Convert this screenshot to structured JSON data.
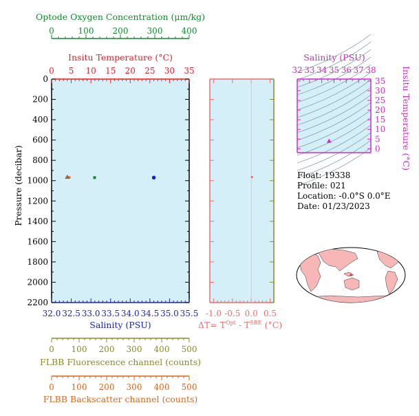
{
  "colors": {
    "plot_bg": "#d4eff8",
    "oxygen": "#118a2e",
    "temperature": "#ee1c24",
    "salinity": "#1a22c8",
    "pressure": "#000000",
    "delta_t": "#f56c6c",
    "ts_diagram": "#d62ac4",
    "fluorescence": "#8a8a2a",
    "backscatter": "#e0641a",
    "land": "#f7b7b7"
  },
  "info": {
    "float": "Float:  19338",
    "profile": "Profile:  021",
    "location": "Location:  -0.0°S   0.0°E",
    "date": "Date:  01/23/2023"
  },
  "chart_data": [
    {
      "type": "scatter",
      "name": "profile",
      "y_axis": {
        "label": "Pressure (decibar)",
        "ticks": [
          "0",
          "200",
          "400",
          "600",
          "800",
          "1000",
          "1200",
          "1400",
          "1600",
          "1800",
          "2000",
          "2200"
        ],
        "range": [
          0,
          2200
        ],
        "inverted": true
      },
      "x_axes": [
        {
          "key": "oxygen",
          "label": "Optode Oxygen Concentration (μm/kg)",
          "ticks": [
            "0",
            "100",
            "200",
            "300",
            "400"
          ],
          "range": [
            0,
            400
          ]
        },
        {
          "key": "temperature",
          "label": "Insitu Temperature (°C)",
          "ticks": [
            "0",
            "5",
            "10",
            "15",
            "20",
            "25",
            "30",
            "35"
          ],
          "range": [
            0,
            35
          ]
        },
        {
          "key": "salinity",
          "label": "Salinity (PSU)",
          "ticks": [
            "32.0",
            "32.5",
            "33.0",
            "33.5",
            "34.0",
            "34.5",
            "35.0",
            "35.5"
          ],
          "range": [
            32.0,
            35.5
          ]
        },
        {
          "key": "fluorescence",
          "label": "FLBB Fluorescence channel (counts)",
          "ticks": [
            "0",
            "100",
            "200",
            "300",
            "400",
            "500"
          ],
          "range": [
            0,
            500
          ]
        },
        {
          "key": "backscatter",
          "label": "FLBB Backscatter channel (counts)",
          "ticks": [
            "0",
            "100",
            "200",
            "300",
            "400",
            "500"
          ],
          "range": [
            0,
            500
          ]
        }
      ],
      "series": [
        {
          "axis": "salinity",
          "x": 34.6,
          "y": 970,
          "marker": "circle"
        },
        {
          "axis": "oxygen",
          "x": 125,
          "y": 970,
          "marker": "square"
        },
        {
          "axis": "temperature",
          "x": 4.0,
          "y": 965,
          "marker": "triangle"
        },
        {
          "axis": "fluorescence",
          "x": 55,
          "y": 968,
          "marker": "small"
        },
        {
          "axis": "backscatter",
          "x": 65,
          "y": 968,
          "marker": "small"
        }
      ]
    },
    {
      "type": "scatter",
      "name": "delta-t",
      "x_axis": {
        "label": "ΔT= T",
        "label_sup1": "Opt",
        "label_mid": " - T",
        "label_sup2": "SBE",
        "label_end": " (°C)",
        "ticks": [
          "-1.0",
          "-0.5",
          "0.0",
          "0.5"
        ],
        "range": [
          -1.1,
          0.6
        ]
      },
      "y_range": [
        0,
        2200
      ],
      "series": [
        {
          "x": 0.02,
          "y": 965,
          "marker": "square"
        }
      ]
    },
    {
      "type": "scatter",
      "name": "ts-diagram",
      "x_axis": {
        "label": "Salinity (PSU)",
        "ticks": [
          "32",
          "33",
          "34",
          "35",
          "36",
          "37",
          "38"
        ],
        "range": [
          32,
          38
        ]
      },
      "y_axis": {
        "label": "Insitu Temperature (°C)",
        "ticks": [
          "0",
          "5",
          "10",
          "15",
          "20",
          "25",
          "30",
          "35"
        ],
        "range": [
          -2,
          36
        ]
      },
      "series": [
        {
          "x": 34.6,
          "y": 4.0,
          "marker": "triangle"
        }
      ]
    }
  ]
}
